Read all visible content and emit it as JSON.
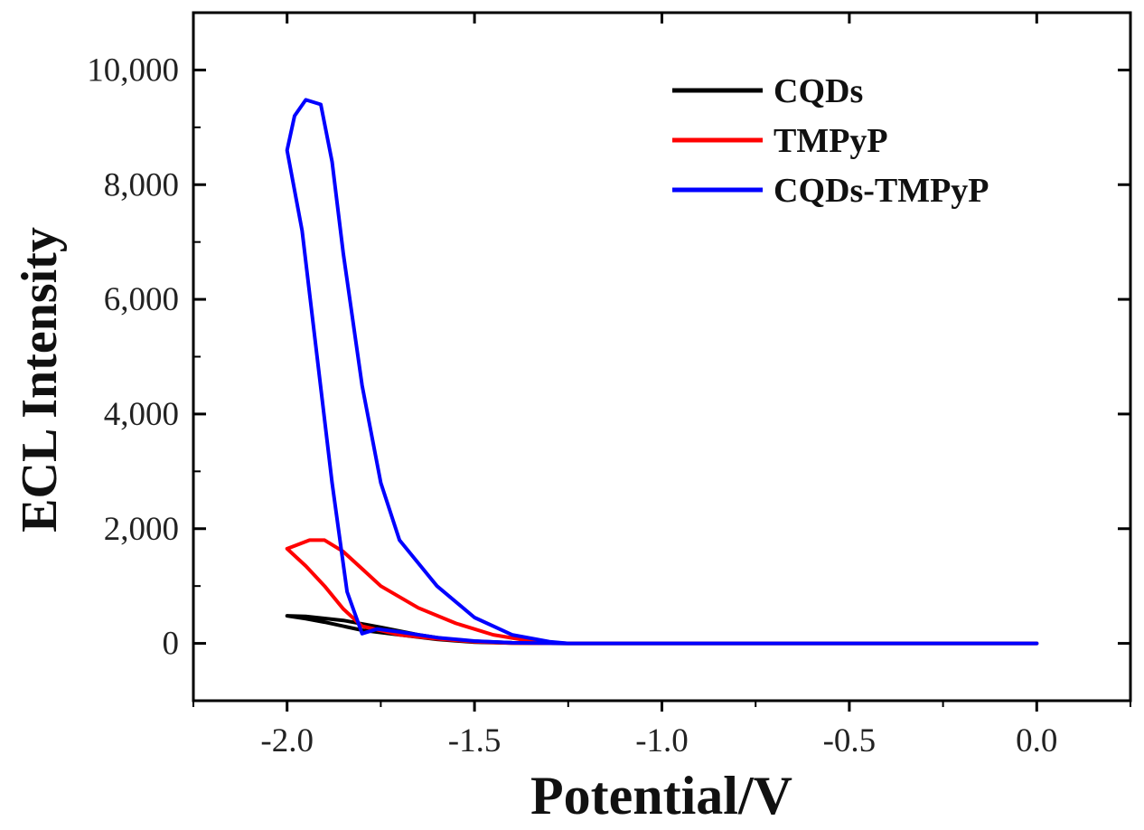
{
  "chart_data": {
    "type": "line",
    "xlabel": "Potential/V",
    "ylabel": "ECL Intensity",
    "xlim": [
      -2.25,
      0.25
    ],
    "ylim": [
      -1000,
      11000
    ],
    "xticks": [
      -2.0,
      -1.5,
      -1.0,
      -0.5,
      0.0
    ],
    "xtick_labels": [
      "-2.0",
      "-1.5",
      "-1.0",
      "-0.5",
      "0.0"
    ],
    "yticks": [
      0,
      2000,
      4000,
      6000,
      8000,
      10000
    ],
    "ytick_labels": [
      "0",
      "2,000",
      "4,000",
      "6,000",
      "8,000",
      "10,000"
    ],
    "legend_position": "top-right",
    "series": [
      {
        "name": "CQDs",
        "color": "#000000",
        "points": [
          [
            -1.25,
            0
          ],
          [
            -1.4,
            10
          ],
          [
            -1.55,
            50
          ],
          [
            -1.65,
            150
          ],
          [
            -1.75,
            280
          ],
          [
            -1.85,
            400
          ],
          [
            -1.95,
            470
          ],
          [
            -2.0,
            480
          ],
          [
            -1.95,
            430
          ],
          [
            -1.9,
            370
          ],
          [
            -1.8,
            230
          ],
          [
            -1.7,
            150
          ],
          [
            -1.6,
            70
          ],
          [
            -1.5,
            20
          ],
          [
            -1.4,
            5
          ],
          [
            -1.25,
            0
          ],
          [
            0.0,
            0
          ]
        ]
      },
      {
        "name": "TMPyP",
        "color": "#ff0000",
        "points": [
          [
            -1.25,
            0
          ],
          [
            -1.35,
            40
          ],
          [
            -1.45,
            150
          ],
          [
            -1.55,
            350
          ],
          [
            -1.65,
            620
          ],
          [
            -1.75,
            1000
          ],
          [
            -1.8,
            1300
          ],
          [
            -1.85,
            1600
          ],
          [
            -1.9,
            1800
          ],
          [
            -1.94,
            1800
          ],
          [
            -1.98,
            1700
          ],
          [
            -2.0,
            1650
          ],
          [
            -1.95,
            1350
          ],
          [
            -1.9,
            1000
          ],
          [
            -1.85,
            600
          ],
          [
            -1.8,
            300
          ],
          [
            -1.7,
            150
          ],
          [
            -1.6,
            80
          ],
          [
            -1.5,
            30
          ],
          [
            -1.4,
            5
          ],
          [
            -1.25,
            0
          ],
          [
            0.0,
            0
          ]
        ]
      },
      {
        "name": "CQDs-TMPyP",
        "color": "#0000ff",
        "points": [
          [
            -1.25,
            0
          ],
          [
            -1.3,
            30
          ],
          [
            -1.4,
            150
          ],
          [
            -1.5,
            450
          ],
          [
            -1.6,
            1000
          ],
          [
            -1.7,
            1800
          ],
          [
            -1.75,
            2800
          ],
          [
            -1.8,
            4500
          ],
          [
            -1.85,
            6800
          ],
          [
            -1.88,
            8400
          ],
          [
            -1.91,
            9400
          ],
          [
            -1.95,
            9480
          ],
          [
            -1.98,
            9200
          ],
          [
            -2.0,
            8600
          ],
          [
            -1.96,
            7200
          ],
          [
            -1.92,
            5000
          ],
          [
            -1.88,
            2800
          ],
          [
            -1.84,
            900
          ],
          [
            -1.8,
            170
          ],
          [
            -1.76,
            250
          ],
          [
            -1.7,
            200
          ],
          [
            -1.6,
            100
          ],
          [
            -1.5,
            40
          ],
          [
            -1.4,
            10
          ],
          [
            -1.25,
            0
          ],
          [
            0.0,
            0
          ]
        ]
      }
    ]
  }
}
